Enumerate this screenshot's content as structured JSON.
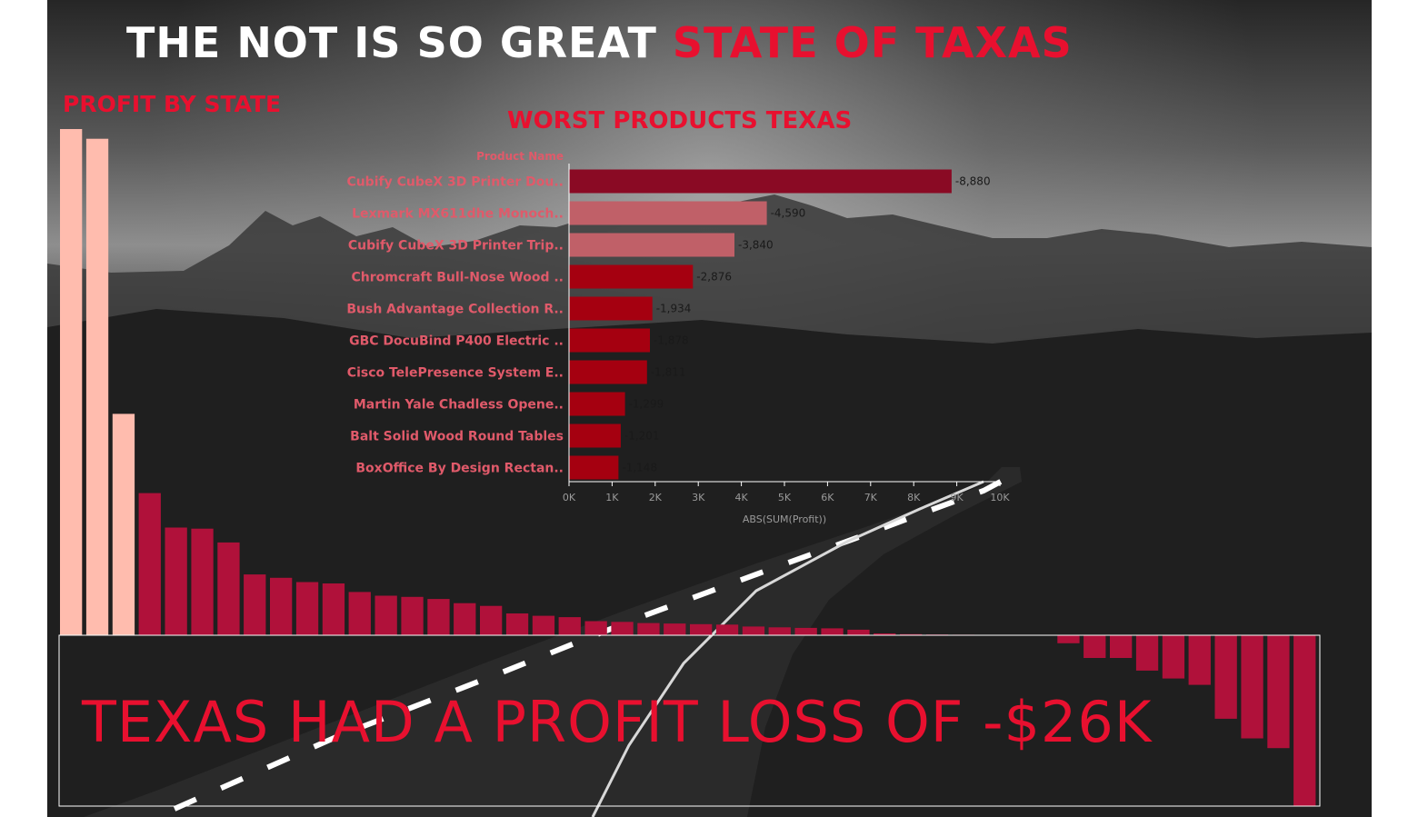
{
  "header": {
    "title_main": "THE NOT IS SO GREAT ",
    "title_accent": "STATE OF TAXAS"
  },
  "colors": {
    "accent": "#e8102f",
    "bar_positive_high": "#ffbcae",
    "bar_default": "#b0113a",
    "worst_top": "#8a0a24",
    "worst_mid": "#c06068",
    "worst_low": "#a50010",
    "label_red": "#e05a6a"
  },
  "callout": {
    "text": "TEXAS HAD A PROFIT LOSS OF -$26K"
  },
  "chart_data": [
    {
      "type": "bar",
      "title": "PROFIT BY STATE",
      "orientation": "vertical",
      "sorted": "descending",
      "categories_hidden": true,
      "highlighted_top_count": 3,
      "values": [
        76381,
        74918,
        33402,
        21452,
        16248,
        16082,
        14003,
        9173,
        8669,
        8026,
        7822,
        6532,
        5962,
        5787,
        5476,
        4840,
        4426,
        3290,
        2930,
        2727,
        2124,
        2014,
        1833,
        1770,
        1675,
        1603,
        1315,
        1190,
        1107,
        1040,
        839,
        277,
        170,
        106,
        89,
        71,
        57,
        34,
        -1200,
        -3428,
        -3427,
        -5341,
        -6528,
        -7491,
        -12608,
        -15560,
        -17029,
        -25729
      ]
    },
    {
      "type": "bar",
      "orientation": "horizontal",
      "title": "WORST PRODUCTS TEXAS",
      "ylabel": "Product Name",
      "xlabel": "ABS(SUM(Profit))",
      "xlim": [
        0,
        10000
      ],
      "x_ticks": [
        "0K",
        "1K",
        "2K",
        "3K",
        "4K",
        "5K",
        "6K",
        "7K",
        "8K",
        "9K",
        "10K"
      ],
      "categories": [
        "Cubify CubeX 3D Printer Dou..",
        "Lexmark MX611dhe Monoch..",
        "Cubify CubeX 3D Printer Trip..",
        "Chromcraft Bull-Nose Wood ..",
        "Bush Advantage Collection R..",
        "GBC DocuBind P400 Electric ..",
        "Cisco TelePresence System E..",
        "Martin Yale Chadless Opene..",
        "Balt Solid Wood Round Tables",
        "BoxOffice By Design Rectan.."
      ],
      "values": [
        8880,
        4590,
        3840,
        2876,
        1934,
        1878,
        1811,
        1299,
        1201,
        1148
      ],
      "data_labels": [
        "-8,880",
        "-4,590",
        "-3,840",
        "-2,876",
        "-1,934",
        "-1,878",
        "-1,811",
        "-1,299",
        "-1,201",
        "-1,148"
      ]
    }
  ]
}
